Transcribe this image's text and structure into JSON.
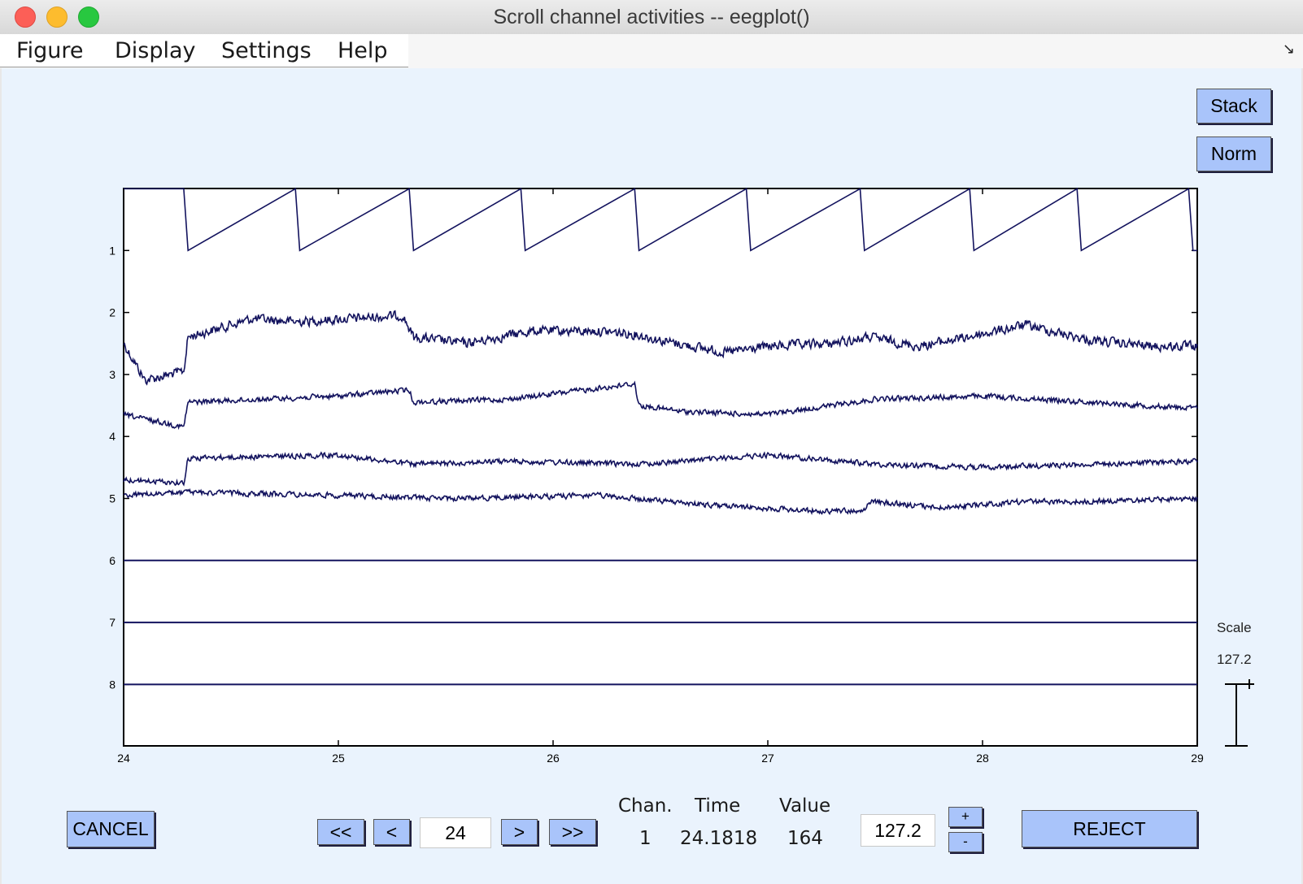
{
  "window": {
    "title": "Scroll channel activities -- eegplot()"
  },
  "menu": [
    "Figure",
    "Display",
    "Settings",
    "Help"
  ],
  "buttons": {
    "stack": "Stack",
    "norm": "Norm",
    "cancel": "CANCEL",
    "first": "<<",
    "prev": "<",
    "next": ">",
    "last": ">>",
    "plus": "+",
    "minus": "-",
    "reject": "REJECT"
  },
  "fields": {
    "time_start": "24",
    "scale": "127.2"
  },
  "readout": {
    "chan_label": "Chan.",
    "time_label": "Time",
    "value_label": "Value",
    "chan": "1",
    "time": "24.1818",
    "value": "164"
  },
  "scale_indicator": {
    "label": "Scale",
    "value": "127.2"
  },
  "colors": {
    "trace": "#13135e",
    "figure_bg": "#eaf3fd",
    "button": "#a9c4fa"
  },
  "chart_data": {
    "type": "line",
    "x_ticks": [
      "24",
      "25",
      "26",
      "27",
      "28",
      "29"
    ],
    "channel_labels": [
      "1",
      "2",
      "3",
      "4",
      "5",
      "6",
      "7",
      "8"
    ],
    "xlim": [
      24,
      29
    ],
    "grid": false,
    "series": [
      {
        "channel": "1",
        "shape": "sawtooth",
        "x": [
          24.0,
          24.28,
          24.3,
          24.8,
          24.82,
          25.33,
          25.35,
          25.85,
          25.87,
          26.38,
          26.4,
          26.9,
          26.92,
          27.43,
          27.45,
          27.94,
          27.96,
          28.44,
          28.46,
          28.96,
          28.98,
          29.0
        ],
        "y": [
          1,
          1,
          0,
          1,
          0,
          1,
          0,
          1,
          0,
          1,
          0,
          1,
          0,
          1,
          0,
          1,
          0,
          1,
          0,
          1,
          0,
          0
        ]
      },
      {
        "channel": "2",
        "shape": "noisy",
        "x": [
          24.0,
          24.1,
          24.28,
          24.3,
          24.6,
          24.8,
          25.3,
          25.35,
          25.6,
          25.9,
          26.2,
          26.38,
          26.5,
          26.8,
          27.0,
          27.3,
          27.48,
          27.7,
          28.0,
          28.2,
          28.5,
          28.8,
          29.0
        ],
        "y": [
          -1.0,
          -2.2,
          -1.9,
          -0.8,
          -0.2,
          -0.3,
          -0.1,
          -0.8,
          -1.0,
          -0.6,
          -0.6,
          -0.7,
          -0.9,
          -1.3,
          -1.1,
          -1.0,
          -0.8,
          -1.1,
          -0.7,
          -0.4,
          -0.9,
          -1.1,
          -1.1
        ]
      },
      {
        "channel": "3",
        "shape": "noisy",
        "x": [
          24.0,
          24.28,
          24.3,
          25.0,
          25.33,
          25.35,
          25.8,
          26.38,
          26.4,
          26.6,
          27.0,
          27.4,
          27.5,
          28.0,
          28.5,
          29.0
        ],
        "y": [
          -1.3,
          -1.7,
          -0.9,
          -0.7,
          -0.5,
          -0.9,
          -0.8,
          -0.3,
          -1.0,
          -1.2,
          -1.3,
          -0.9,
          -0.8,
          -0.7,
          -0.9,
          -1.1
        ]
      },
      {
        "channel": "4",
        "shape": "noisy",
        "x": [
          24.0,
          24.28,
          24.3,
          25.0,
          25.35,
          25.8,
          26.4,
          26.8,
          27.0,
          27.5,
          28.0,
          28.5,
          29.0
        ],
        "y": [
          -1.4,
          -1.5,
          -0.7,
          -0.6,
          -0.9,
          -0.8,
          -0.9,
          -0.7,
          -0.6,
          -0.9,
          -1.0,
          -0.9,
          -0.8
        ]
      },
      {
        "channel": "5",
        "shape": "noisy",
        "x": [
          24.0,
          24.3,
          25.0,
          25.5,
          26.2,
          26.7,
          27.2,
          27.45,
          27.47,
          27.8,
          28.2,
          28.5,
          29.0
        ],
        "y": [
          0.1,
          0.2,
          0.1,
          0.0,
          0.1,
          -0.2,
          -0.4,
          -0.4,
          -0.1,
          -0.3,
          -0.1,
          -0.1,
          0.0
        ]
      },
      {
        "channel": "6",
        "shape": "flat",
        "x": [
          24.0,
          29.0
        ],
        "y": [
          0,
          0
        ]
      },
      {
        "channel": "7",
        "shape": "flat",
        "x": [
          24.0,
          29.0
        ],
        "y": [
          0,
          0
        ]
      },
      {
        "channel": "8",
        "shape": "flat",
        "x": [
          24.0,
          29.0
        ],
        "y": [
          0,
          0
        ]
      }
    ]
  }
}
